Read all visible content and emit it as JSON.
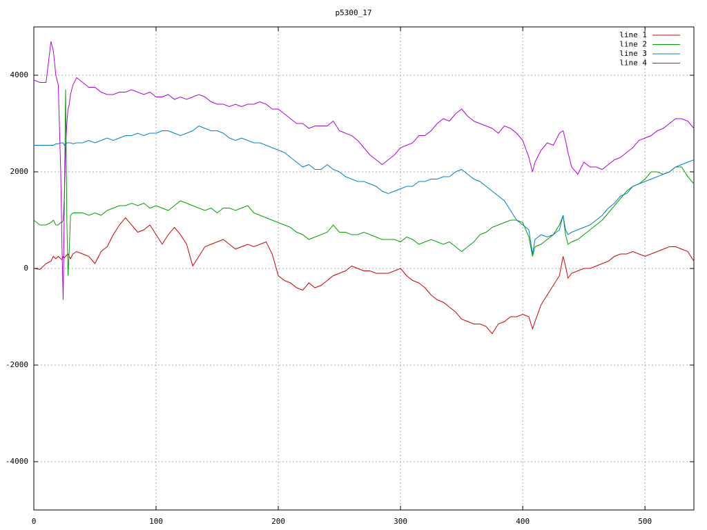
{
  "chart_data": {
    "type": "line",
    "title": "p5300_17",
    "x": [
      0,
      5,
      10,
      14,
      16,
      18,
      20,
      22,
      23,
      24,
      25,
      26,
      27,
      28,
      29,
      30,
      32,
      35,
      40,
      45,
      50,
      55,
      60,
      65,
      70,
      75,
      80,
      85,
      90,
      95,
      100,
      105,
      110,
      115,
      120,
      125,
      130,
      135,
      140,
      145,
      150,
      155,
      160,
      165,
      170,
      175,
      180,
      185,
      190,
      195,
      200,
      205,
      210,
      215,
      220,
      225,
      230,
      235,
      240,
      245,
      250,
      255,
      260,
      265,
      270,
      275,
      280,
      285,
      290,
      295,
      300,
      305,
      310,
      315,
      320,
      325,
      330,
      335,
      340,
      345,
      350,
      355,
      360,
      365,
      370,
      375,
      380,
      385,
      390,
      395,
      400,
      405,
      408,
      410,
      415,
      420,
      425,
      430,
      433,
      435,
      437,
      440,
      445,
      450,
      455,
      460,
      465,
      470,
      475,
      480,
      485,
      490,
      495,
      500,
      505,
      510,
      515,
      520,
      525,
      530,
      535,
      540
    ],
    "series": [
      {
        "name": "line 1",
        "color": "#d00000",
        "values": [
          0,
          -20,
          100,
          150,
          250,
          200,
          250,
          200,
          180,
          250,
          220,
          250,
          280,
          300,
          250,
          200,
          300,
          350,
          300,
          250,
          100,
          350,
          450,
          700,
          900,
          1050,
          900,
          750,
          800,
          900,
          700,
          500,
          700,
          850,
          700,
          500,
          50,
          250,
          450,
          500,
          550,
          600,
          500,
          400,
          450,
          500,
          450,
          500,
          550,
          300,
          -150,
          -250,
          -300,
          -400,
          -450,
          -300,
          -400,
          -350,
          -250,
          -150,
          -100,
          -50,
          50,
          0,
          -50,
          -50,
          -100,
          -100,
          -100,
          -50,
          0,
          -150,
          -250,
          -300,
          -400,
          -550,
          -650,
          -700,
          -800,
          -900,
          -1050,
          -1100,
          -1150,
          -1150,
          -1200,
          -1350,
          -1150,
          -1100,
          -1000,
          -1000,
          -950,
          -1000,
          -1250,
          -1100,
          -750,
          -550,
          -350,
          -150,
          250,
          50,
          -200,
          -100,
          -50,
          0,
          0,
          50,
          100,
          150,
          250,
          300,
          300,
          350,
          300,
          250,
          300,
          350,
          400,
          450,
          450,
          400,
          350,
          150
        ]
      },
      {
        "name": "line 2",
        "color": "#00a000",
        "values": [
          1000,
          900,
          900,
          950,
          1000,
          900,
          900,
          950,
          950,
          1000,
          1500,
          3700,
          1000,
          -150,
          400,
          1100,
          1150,
          1150,
          1150,
          1100,
          1150,
          1100,
          1200,
          1250,
          1300,
          1300,
          1350,
          1300,
          1350,
          1250,
          1300,
          1250,
          1200,
          1300,
          1400,
          1350,
          1300,
          1250,
          1200,
          1250,
          1150,
          1250,
          1250,
          1200,
          1250,
          1300,
          1150,
          1100,
          1050,
          1000,
          950,
          900,
          850,
          750,
          700,
          600,
          650,
          700,
          750,
          900,
          750,
          750,
          700,
          700,
          750,
          700,
          650,
          600,
          600,
          600,
          550,
          650,
          600,
          500,
          550,
          600,
          550,
          500,
          550,
          450,
          350,
          450,
          550,
          700,
          750,
          850,
          900,
          950,
          1000,
          1000,
          950,
          650,
          250,
          450,
          500,
          600,
          700,
          900,
          1100,
          700,
          500,
          550,
          600,
          700,
          800,
          900,
          1000,
          1150,
          1300,
          1450,
          1600,
          1700,
          1750,
          1850,
          2000,
          2000,
          1950,
          2000,
          2100,
          2100,
          1900,
          1750
        ]
      },
      {
        "name": "line 3",
        "color": "#0080c0",
        "values": [
          2550,
          2550,
          2550,
          2550,
          2550,
          2580,
          2580,
          2600,
          2600,
          2600,
          2550,
          2580,
          2600,
          2600,
          2600,
          2600,
          2580,
          2600,
          2600,
          2650,
          2600,
          2650,
          2700,
          2650,
          2700,
          2750,
          2750,
          2800,
          2750,
          2800,
          2800,
          2850,
          2850,
          2800,
          2750,
          2800,
          2850,
          2950,
          2900,
          2850,
          2850,
          2800,
          2700,
          2650,
          2700,
          2650,
          2600,
          2600,
          2550,
          2500,
          2450,
          2400,
          2300,
          2200,
          2100,
          2150,
          2050,
          2050,
          2150,
          2050,
          2000,
          1900,
          1850,
          1800,
          1800,
          1750,
          1700,
          1600,
          1550,
          1600,
          1650,
          1700,
          1700,
          1800,
          1800,
          1850,
          1850,
          1900,
          1900,
          2000,
          2050,
          1950,
          1850,
          1800,
          1700,
          1600,
          1500,
          1400,
          1200,
          1000,
          900,
          800,
          300,
          600,
          700,
          650,
          700,
          800,
          1100,
          800,
          700,
          750,
          800,
          850,
          900,
          1000,
          1100,
          1250,
          1350,
          1500,
          1550,
          1700,
          1750,
          1800,
          1850,
          1900,
          1950,
          2000,
          2100,
          2150,
          2200,
          2250
        ]
      },
      {
        "name": "line 4",
        "color": "#b000e0",
        "values": [
          3900,
          3850,
          3850,
          4700,
          4500,
          4000,
          3800,
          2000,
          500,
          -650,
          1500,
          2500,
          3000,
          3300,
          3400,
          3600,
          3800,
          3950,
          3850,
          3750,
          3750,
          3650,
          3600,
          3600,
          3650,
          3650,
          3700,
          3650,
          3600,
          3650,
          3550,
          3550,
          3600,
          3500,
          3550,
          3500,
          3550,
          3600,
          3550,
          3450,
          3400,
          3400,
          3350,
          3400,
          3350,
          3400,
          3400,
          3450,
          3400,
          3300,
          3300,
          3200,
          3100,
          3000,
          3000,
          2900,
          2950,
          2950,
          2950,
          3050,
          2850,
          2800,
          2750,
          2650,
          2500,
          2350,
          2250,
          2150,
          2250,
          2350,
          2500,
          2550,
          2600,
          2750,
          2750,
          2850,
          3000,
          3100,
          3050,
          3200,
          3300,
          3150,
          3050,
          3000,
          2950,
          2900,
          2800,
          2950,
          2900,
          2800,
          2650,
          2300,
          2000,
          2200,
          2450,
          2600,
          2550,
          2800,
          2850,
          2650,
          2400,
          2100,
          1950,
          2200,
          2100,
          2100,
          2050,
          2150,
          2250,
          2300,
          2400,
          2500,
          2650,
          2700,
          2750,
          2850,
          2900,
          3000,
          3100,
          3100,
          3050,
          2900
        ]
      }
    ],
    "xlim": [
      0,
      540
    ],
    "ylim": [
      -5000,
      5000
    ],
    "xticks": [
      0,
      100,
      200,
      300,
      400,
      500
    ],
    "yticks": [
      -4000,
      -2000,
      0,
      2000,
      4000
    ],
    "grid": true,
    "legend": "top-right"
  }
}
